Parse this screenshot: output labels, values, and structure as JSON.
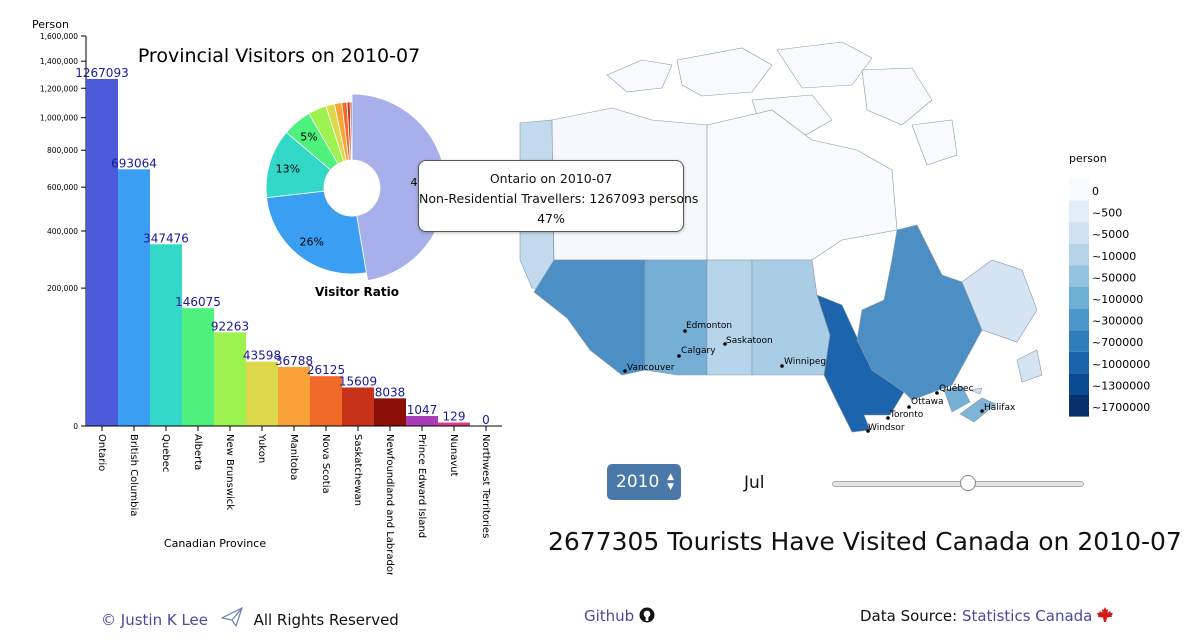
{
  "chart_data": {
    "type": "bar",
    "title": "Provincial Visitors on 2010-07",
    "xlabel": "Canadian Province",
    "ylabel": "Person",
    "y_scale": "sqrt",
    "ylim": [
      0,
      1600000
    ],
    "y_ticks": [
      0,
      200000,
      400000,
      600000,
      800000,
      1000000,
      1200000,
      1400000,
      1600000
    ],
    "y_tick_labels": [
      "0",
      "200,000",
      "400,000",
      "600,000",
      "800,000",
      "1,000,000",
      "1,200,000",
      "1,400,000",
      "1,600,000"
    ],
    "categories": [
      "Ontario",
      "British Columbia",
      "Quebec",
      "Alberta",
      "New Brunswick",
      "Yukon",
      "Manitoba",
      "Nova Scotia",
      "Saskatchewan",
      "Newfoundland and Labrador",
      "Prince Edward Island",
      "Nunavut",
      "Northwest Territories"
    ],
    "values": [
      1267093,
      693064,
      347476,
      146075,
      92263,
      43598,
      36788,
      26125,
      15609,
      8038,
      1047,
      129,
      0
    ],
    "colors": [
      "#4b5ad8",
      "#3a9ef2",
      "#33d8c8",
      "#4ef07e",
      "#9cf24e",
      "#dcd84a",
      "#f8a238",
      "#f06a2a",
      "#c83218",
      "#8a0f06",
      "#a83cb4",
      "#d83c8c",
      "#555555"
    ]
  },
  "pie": {
    "title": "Visitor Ratio",
    "labels": [
      "47%",
      "26%",
      "13%",
      "5%"
    ],
    "slice_colors": [
      "#a8b0ec",
      "#3a9ef2",
      "#33d8c8",
      "#4ef07e",
      "#9cf24e",
      "#dcd84a",
      "#f8a238",
      "#f06a2a",
      "#c83218",
      "#8a0f06"
    ]
  },
  "tooltip": {
    "line1": "Ontario on 2010-07",
    "line2": "Non-Residential Travellers: 1267093 persons",
    "line3": "47%"
  },
  "map": {
    "cities": [
      "Edmonton",
      "Calgary",
      "Saskatoon",
      "Vancouver",
      "Winnipeg",
      "Québec",
      "Ottawa",
      "Toronto",
      "Windsor",
      "Halifax"
    ]
  },
  "legend": {
    "title": "person",
    "labels": [
      "0",
      "~500",
      "~5000",
      "~10000",
      "~50000",
      "~100000",
      "~300000",
      "~700000",
      "~1000000",
      "~1300000",
      "~1700000"
    ],
    "colors": [
      "#f7fbff",
      "#e3eef9",
      "#cfe1f2",
      "#b5d4e9",
      "#93c3df",
      "#6daed5",
      "#4b97c9",
      "#2f7ebc",
      "#1864aa",
      "#0a4a90",
      "#08306b"
    ]
  },
  "controls": {
    "year": "2010",
    "month": "Jul"
  },
  "headline": "2677305 Tourists Have Visited Canada on 2010-07",
  "footer": {
    "author": "© Justin K Lee",
    "rights": "All Rights Reserved",
    "github": "Github",
    "source_label": "Data Source:",
    "source_link": "Statistics Canada"
  }
}
